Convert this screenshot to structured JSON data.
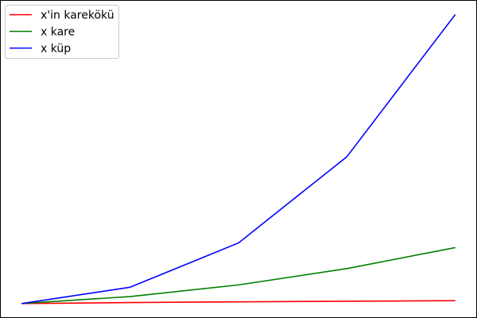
{
  "chart_data": {
    "type": "line",
    "title": "",
    "xlabel": "",
    "ylabel": "",
    "x": [
      1,
      2,
      3,
      4,
      5
    ],
    "xlim": [
      0.8,
      5.2
    ],
    "ylim": [
      -5.2,
      131.2
    ],
    "grid": false,
    "legend_position": "top-left",
    "series": [
      {
        "name": "x'in karekökü",
        "color": "#ff0000",
        "values": [
          1,
          1.414,
          1.732,
          2,
          2.236
        ]
      },
      {
        "name": "x kare",
        "color": "#008000",
        "values": [
          1,
          4,
          9,
          16,
          25
        ]
      },
      {
        "name": "x küp",
        "color": "#0000ff",
        "values": [
          1,
          8,
          27,
          64,
          125
        ]
      }
    ]
  }
}
